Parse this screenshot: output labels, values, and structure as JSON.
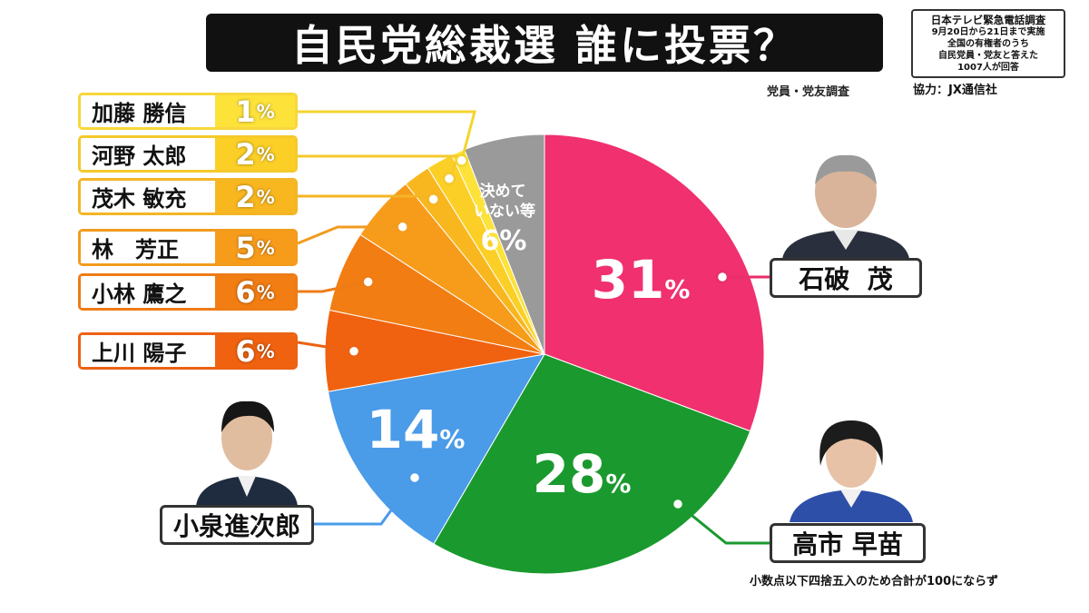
{
  "header": {
    "title": "自民党総裁選 誰に投票？",
    "subtitle": "党員・党友調査",
    "survey_lines": [
      "日本テレビ緊急電話調査",
      "9月20日から21日まで実施",
      "全国の有権者のうち",
      "自民党員・党友と答えた",
      "1007人が回答"
    ],
    "credit": "協力：JX通信社"
  },
  "footnote": "小数点以下四捨五入のため合計が100にならず",
  "colors": {
    "ishiba": "#f0306f",
    "takaichi": "#1a9a2e",
    "koizumi": "#4a9be8",
    "kamikawa": "#f0620f",
    "kobayashi": "#f27d12",
    "hayashi": "#f79c1a",
    "motegi": "#f9b71f",
    "kono": "#fbcf26",
    "kato": "#fde23a",
    "undecided": "#9a9a9a"
  },
  "chart_data": {
    "type": "pie",
    "title": "自民党総裁選 誰に投票？",
    "unit": "%",
    "slices": [
      {
        "label": "石破 茂",
        "value": 31
      },
      {
        "label": "高市 早苗",
        "value": 28
      },
      {
        "label": "小泉進次郎",
        "value": 14
      },
      {
        "label": "上川 陽子",
        "value": 6
      },
      {
        "label": "小林 鷹之",
        "value": 6
      },
      {
        "label": "林 芳正",
        "value": 5
      },
      {
        "label": "茂木 敏充",
        "value": 2
      },
      {
        "label": "河野 太郎",
        "value": 2
      },
      {
        "label": "加藤 勝信",
        "value": 1
      },
      {
        "label": "決めていない等",
        "value": 6
      }
    ]
  },
  "labels": {
    "ishiba": {
      "name": "石破  茂",
      "pct": "31"
    },
    "takaichi": {
      "name": "高市 早苗",
      "pct": "28"
    },
    "koizumi": {
      "name": "小泉進次郎",
      "pct": "14"
    },
    "kamikawa": {
      "name": "上川 陽子",
      "pct": "6"
    },
    "kobayashi": {
      "name": "小林 鷹之",
      "pct": "6"
    },
    "hayashi": {
      "name": "林　芳正",
      "pct": "5"
    },
    "motegi": {
      "name": "茂木 敏充",
      "pct": "2"
    },
    "kono": {
      "name": "河野 太郎",
      "pct": "2"
    },
    "kato": {
      "name": "加藤 勝信",
      "pct": "1"
    },
    "undecided": {
      "line1": "決めて",
      "line2": "いない等",
      "pct": "6%"
    },
    "percent_sign": "%"
  }
}
